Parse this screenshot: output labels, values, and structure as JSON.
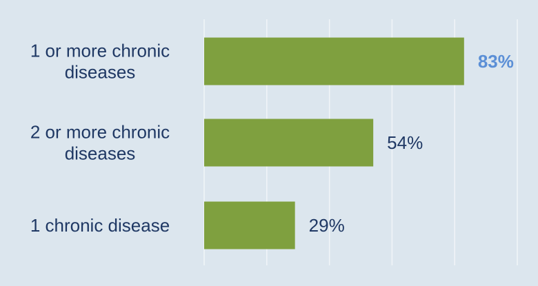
{
  "chart_data": {
    "type": "bar",
    "orientation": "horizontal",
    "categories": [
      [
        "1 or more chronic",
        "diseases"
      ],
      [
        "2 or more chronic",
        "diseases"
      ],
      [
        "1 chronic disease"
      ]
    ],
    "values": [
      83,
      54,
      29
    ],
    "value_labels": [
      "83%",
      "54%",
      "29%"
    ],
    "highlight_index": 0,
    "xlim": [
      0,
      100
    ],
    "grid": "vertical lines",
    "colors": {
      "background": "#dce6ee",
      "bar": "#7fa03f",
      "gridline": "#f1f5f8",
      "label": "#1f3864",
      "highlight_label": "#5b8fd6"
    }
  }
}
